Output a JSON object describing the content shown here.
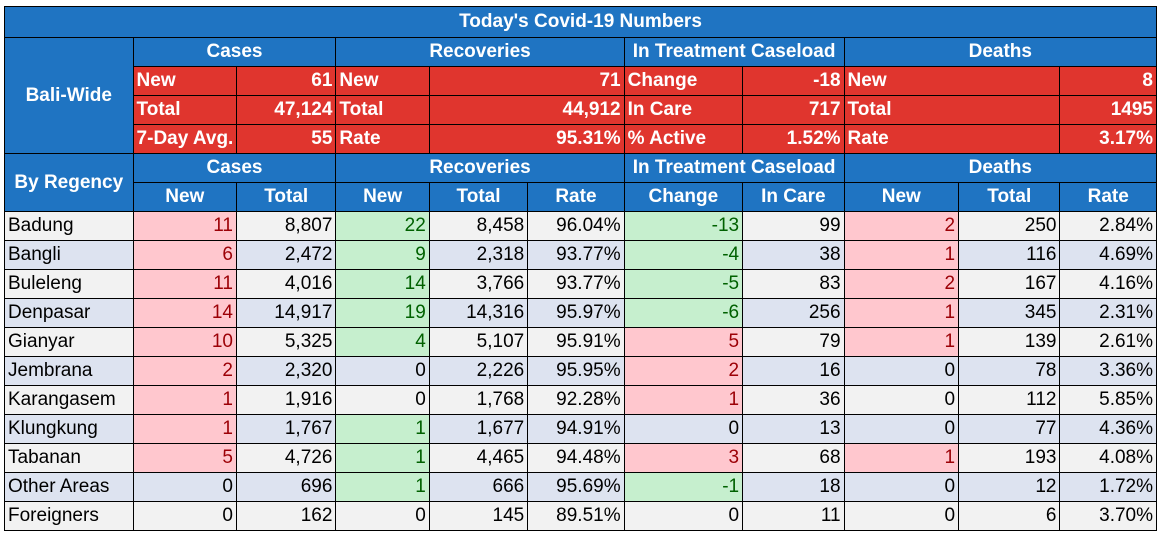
{
  "title": "Today's Covid-19 Numbers",
  "bali_wide": {
    "label": "Bali-Wide",
    "groups": [
      "Cases",
      "Recoveries",
      "In Treatment Caseload",
      "Deaths"
    ],
    "rows": [
      [
        [
          "New",
          "61"
        ],
        [
          "New",
          "71"
        ],
        [
          "Change",
          "-18"
        ],
        [
          "New",
          "8"
        ]
      ],
      [
        [
          "Total",
          "47,124"
        ],
        [
          "Total",
          "44,912"
        ],
        [
          "In Care",
          "717"
        ],
        [
          "Total",
          "1495"
        ]
      ],
      [
        [
          "7-Day Avg.",
          "55"
        ],
        [
          "Rate",
          "95.31%"
        ],
        [
          "% Active",
          "1.52%"
        ],
        [
          "Rate",
          "3.17%"
        ]
      ]
    ]
  },
  "by_regency": {
    "label": "By Regency",
    "groups": [
      "Cases",
      "Recoveries",
      "In Treatment Caseload",
      "Deaths"
    ],
    "columns": [
      "New",
      "Total",
      "New",
      "Total",
      "Rate",
      "Change",
      "In Care",
      "New",
      "Total",
      "Rate"
    ],
    "rows": [
      {
        "name": "Badung",
        "cells": [
          "11",
          "8,807",
          "22",
          "8,458",
          "96.04%",
          "-13",
          "99",
          "2",
          "250",
          "2.84%"
        ]
      },
      {
        "name": "Bangli",
        "cells": [
          "6",
          "2,472",
          "9",
          "2,318",
          "93.77%",
          "-4",
          "38",
          "1",
          "116",
          "4.69%"
        ]
      },
      {
        "name": "Buleleng",
        "cells": [
          "11",
          "4,016",
          "14",
          "3,766",
          "93.77%",
          "-5",
          "83",
          "2",
          "167",
          "4.16%"
        ]
      },
      {
        "name": "Denpasar",
        "cells": [
          "14",
          "14,917",
          "19",
          "14,316",
          "95.97%",
          "-6",
          "256",
          "1",
          "345",
          "2.31%"
        ]
      },
      {
        "name": "Gianyar",
        "cells": [
          "10",
          "5,325",
          "4",
          "5,107",
          "95.91%",
          "5",
          "79",
          "1",
          "139",
          "2.61%"
        ]
      },
      {
        "name": "Jembrana",
        "cells": [
          "2",
          "2,320",
          "0",
          "2,226",
          "95.95%",
          "2",
          "16",
          "0",
          "78",
          "3.36%"
        ]
      },
      {
        "name": "Karangasem",
        "cells": [
          "1",
          "1,916",
          "0",
          "1,768",
          "92.28%",
          "1",
          "36",
          "0",
          "112",
          "5.85%"
        ]
      },
      {
        "name": "Klungkung",
        "cells": [
          "1",
          "1,767",
          "1",
          "1,677",
          "94.91%",
          "0",
          "13",
          "0",
          "77",
          "4.36%"
        ]
      },
      {
        "name": "Tabanan",
        "cells": [
          "5",
          "4,726",
          "1",
          "4,465",
          "94.48%",
          "3",
          "68",
          "1",
          "193",
          "4.08%"
        ]
      },
      {
        "name": "Other Areas",
        "cells": [
          "0",
          "696",
          "1",
          "666",
          "95.69%",
          "-1",
          "18",
          "0",
          "12",
          "1.72%"
        ]
      },
      {
        "name": "Foreigners",
        "cells": [
          "0",
          "162",
          "0",
          "145",
          "89.51%",
          "0",
          "11",
          "0",
          "6",
          "3.70%"
        ]
      }
    ]
  }
}
